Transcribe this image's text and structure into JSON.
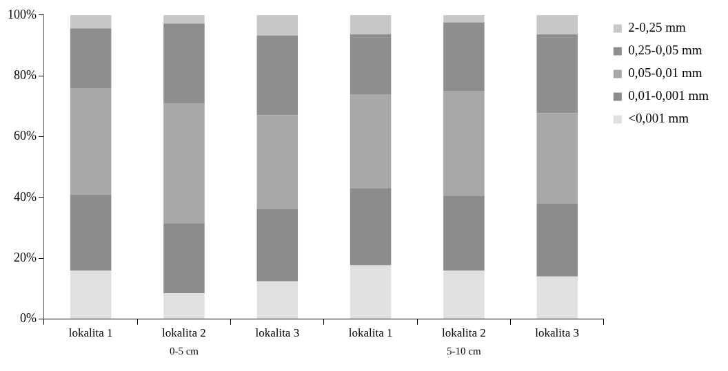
{
  "chart_data": {
    "type": "bar",
    "stacked": true,
    "categories": [
      "lokalita 1",
      "lokalita 2",
      "lokalita 3",
      "lokalita 1",
      "lokalita 2",
      "lokalita 3"
    ],
    "series": [
      {
        "name": "<0,001 mm",
        "color": "#e0e0e0",
        "values": [
          16.0,
          8.5,
          12.4,
          17.7,
          15.9,
          14.0
        ]
      },
      {
        "name": "0,01-0,001 mm",
        "color": "#8c8c8c",
        "values": [
          25.0,
          22.9,
          23.9,
          25.4,
          24.7,
          24.1
        ]
      },
      {
        "name": "0,05-0,01 mm",
        "color": "#a8a8a8",
        "values": [
          34.8,
          39.6,
          30.8,
          30.8,
          34.3,
          29.6
        ]
      },
      {
        "name": "0,25-0,05 mm",
        "color": "#8e8e8e",
        "values": [
          19.8,
          26.2,
          26.2,
          19.8,
          22.7,
          26.0
        ]
      },
      {
        "name": "2-0,25 mm",
        "color": "#c8c8c8",
        "values": [
          4.4,
          2.8,
          6.7,
          6.3,
          2.4,
          6.3
        ]
      }
    ],
    "ylim": [
      0,
      100
    ],
    "yticks": [
      {
        "value": 0,
        "label": "0%"
      },
      {
        "value": 20,
        "label": "20%"
      },
      {
        "value": 40,
        "label": "40%"
      },
      {
        "value": 60,
        "label": "60%"
      },
      {
        "value": 80,
        "label": "80%"
      },
      {
        "value": 100,
        "label": "100%"
      }
    ],
    "grid": false,
    "legend": "top right",
    "annotations": [
      "0-5 cm",
      "5-10 cm"
    ]
  }
}
